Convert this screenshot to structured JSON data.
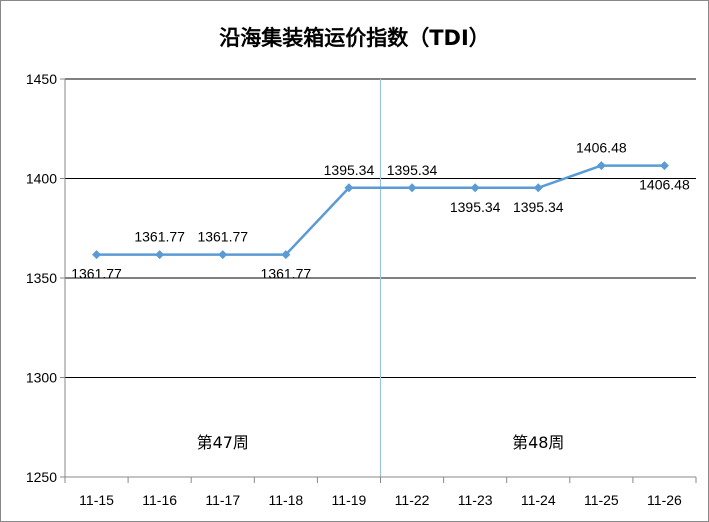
{
  "chart_data": {
    "type": "line",
    "title": "沿海集装箱运价指数（TDI）",
    "categories": [
      "11-15",
      "11-16",
      "11-17",
      "11-18",
      "11-19",
      "11-22",
      "11-23",
      "11-24",
      "11-25",
      "11-26"
    ],
    "series": [
      {
        "values": [
          1361.77,
          1361.77,
          1361.77,
          1361.77,
          1395.34,
          1395.34,
          1395.34,
          1395.34,
          1406.48,
          1406.48
        ],
        "data_labels": [
          "1361.77",
          "1361.77",
          "1361.77",
          "1361.77",
          "1395.34",
          "1395.34",
          "1395.34",
          "1395.34",
          "1406.48",
          "1406.48"
        ],
        "label_positions": [
          "below",
          "above",
          "above",
          "below",
          "above",
          "above",
          "below",
          "below",
          "above",
          "below"
        ],
        "color": "#5b9bd5"
      }
    ],
    "ylim": [
      1250,
      1450
    ],
    "yticks": [
      "1250",
      "1300",
      "1350",
      "1400",
      "1450"
    ],
    "grid": true,
    "legend": "none",
    "groups": [
      {
        "label": "第47周",
        "categories": [
          "11-15",
          "11-16",
          "11-17",
          "11-18",
          "11-19"
        ]
      },
      {
        "label": "第48周",
        "categories": [
          "11-22",
          "11-23",
          "11-24",
          "11-25",
          "11-26"
        ]
      }
    ],
    "colors": {
      "line": "#5b9bd5",
      "grid": "#000000",
      "separator": "#9dc3e6",
      "axis": "#888888"
    }
  }
}
